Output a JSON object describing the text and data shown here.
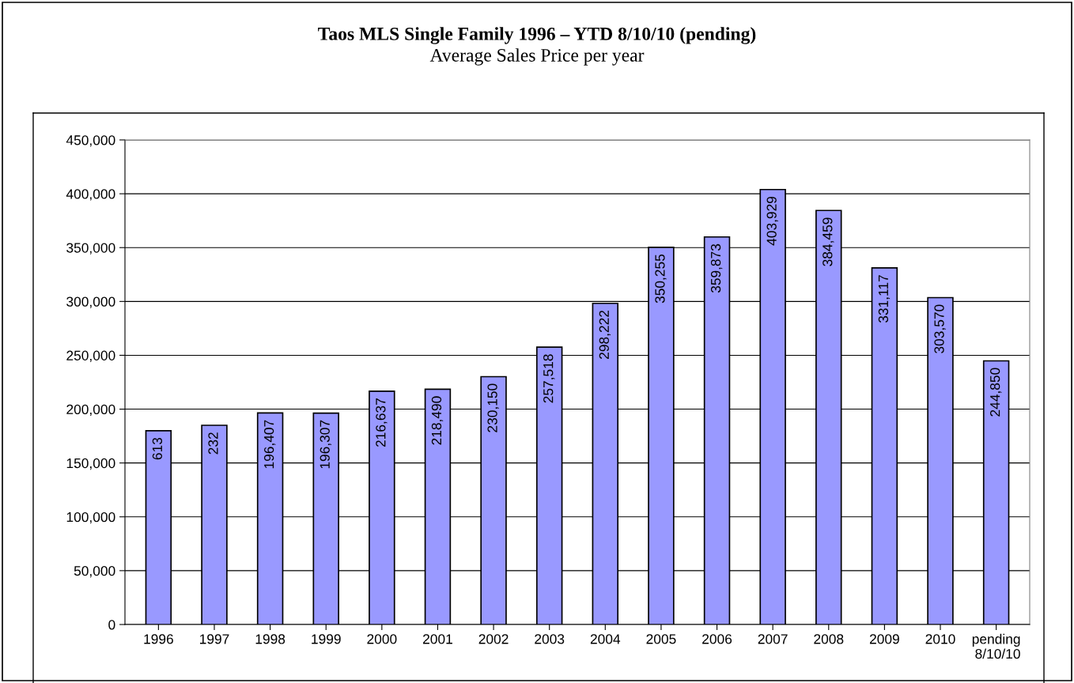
{
  "chart_data": {
    "type": "bar",
    "title": "Taos MLS Single Family 1996 – YTD 8/10/10 (pending)",
    "subtitle": "Average Sales Price per year",
    "categories": [
      "1996",
      "1997",
      "1998",
      "1999",
      "2000",
      "2001",
      "2002",
      "2003",
      "2004",
      "2005",
      "2006",
      "2007",
      "2008",
      "2009",
      "2010",
      "pending\n8/10/10"
    ],
    "values": [
      180000,
      185000,
      196407,
      196307,
      216637,
      218490,
      230150,
      257518,
      298222,
      350255,
      359873,
      403929,
      384459,
      331117,
      303570,
      244850
    ],
    "annotations": [
      {
        "text": "613",
        "x": "1996",
        "y": 180000
      },
      {
        "text": "232",
        "x": "1997",
        "y": 185000
      }
    ],
    "value_labels": [
      null,
      null,
      "196,407",
      "196,307",
      "216,637",
      "218,490",
      "230,150",
      "257,518",
      "298,222",
      "350,255",
      "359,873",
      "403,929",
      "384,459",
      "331,117",
      "303,570",
      "244,850"
    ],
    "color": "#9999ff",
    "ylim": [
      0,
      450000
    ],
    "yticks": [
      0,
      {
        "value": 50000,
        "label": "50,000"
      },
      {
        "value": 100000,
        "label": "100,000"
      },
      {
        "value": 150000,
        "label": "150,000"
      },
      {
        "value": 200000,
        "label": "200,000"
      },
      {
        "value": 250000,
        "label": "250,000"
      },
      {
        "value": 300000,
        "label": "300,000"
      },
      {
        "value": 350000,
        "label": "350,000"
      },
      {
        "value": 400000,
        "label": "400,000"
      },
      {
        "value": 450000,
        "label": "450,000"
      }
    ],
    "grid": "y"
  }
}
